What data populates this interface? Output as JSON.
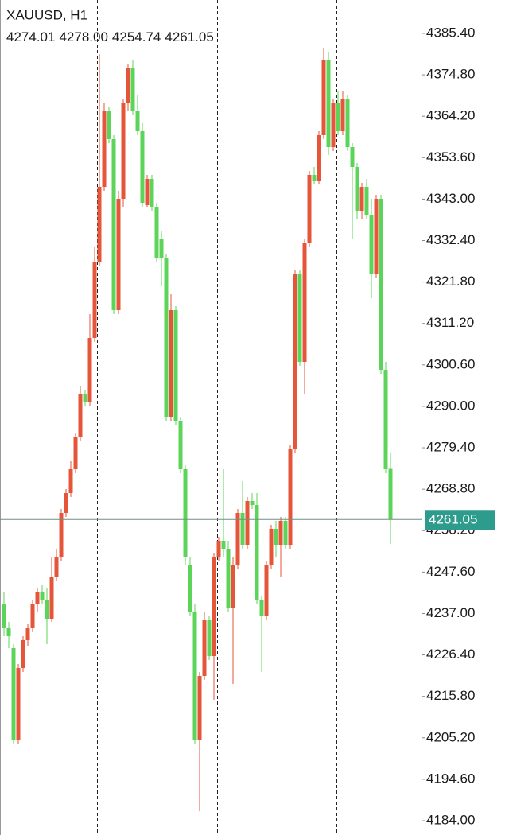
{
  "chart_data": {
    "type": "candlestick",
    "title": "XAUUSD, H1",
    "header_values": [
      "4274.01",
      "4278.00",
      "4254.74",
      "4261.05"
    ],
    "up_color": "#e4553a",
    "down_color": "#5cd45a",
    "last_price": {
      "value": 4261.05,
      "label": "4261.05"
    },
    "last_price_color": "#2e9c8d",
    "ylim": [
      4180.34,
      4393.94
    ],
    "yticks": [
      {
        "value": 4385.4,
        "label": "4385.40"
      },
      {
        "value": 4374.8,
        "label": "4374.80"
      },
      {
        "value": 4364.2,
        "label": "4364.20"
      },
      {
        "value": 4353.6,
        "label": "4353.60"
      },
      {
        "value": 4343,
        "label": "4343.00"
      },
      {
        "value": 4332.4,
        "label": "4332.40"
      },
      {
        "value": 4321.8,
        "label": "4321.80"
      },
      {
        "value": 4311.2,
        "label": "4311.20"
      },
      {
        "value": 4300.6,
        "label": "4300.60"
      },
      {
        "value": 4290,
        "label": "4290.00"
      },
      {
        "value": 4279.4,
        "label": "4279.40"
      },
      {
        "value": 4268.8,
        "label": "4268.80"
      },
      {
        "value": 4258.2,
        "label": "4258.20"
      },
      {
        "value": 4247.6,
        "label": "4247.60"
      },
      {
        "value": 4237,
        "label": "4237.00"
      },
      {
        "value": 4226.4,
        "label": "4226.40"
      },
      {
        "value": 4215.8,
        "label": "4215.80"
      },
      {
        "value": 4205.2,
        "label": "4205.20"
      },
      {
        "value": 4194.6,
        "label": "4194.60"
      },
      {
        "value": 4184,
        "label": "4184.00"
      }
    ],
    "candles": [
      [
        4239.33,
        4242.38,
        4231.2,
        4233.23
      ],
      [
        4233.23,
        4234.86,
        4228.14,
        4231.2
      ],
      [
        4228.14,
        4229.16,
        4203.73,
        4204.75
      ],
      [
        4204.75,
        4224.08,
        4203.73,
        4223.06
      ],
      [
        4223.06,
        4231.2,
        4222.04,
        4230.18
      ],
      [
        4230.18,
        4234.25,
        4228.75,
        4233.23
      ],
      [
        4233.23,
        4240.35,
        4232.21,
        4239.33
      ],
      [
        4239.33,
        4243.4,
        4237.3,
        4242.38
      ],
      [
        4242.38,
        4244.42,
        4239.33,
        4240.35
      ],
      [
        4240.35,
        4243.4,
        4229.16,
        4235.67
      ],
      [
        4235.67,
        4251.54,
        4234.86,
        4246.45
      ],
      [
        4246.45,
        4253.57,
        4245.44,
        4251.54
      ],
      [
        4251.54,
        4263.74,
        4250.52,
        4262.73
      ],
      [
        4262.73,
        4268.83,
        4261.71,
        4267.81
      ],
      [
        4267.81,
        4275.95,
        4266.8,
        4273.92
      ],
      [
        4273.92,
        4283.07,
        4272.9,
        4282.05
      ],
      [
        4282.05,
        4295.28,
        4281.04,
        4293.24
      ],
      [
        4293.24,
        4294.26,
        4290.19,
        4291.21
      ],
      [
        4291.21,
        4313.59,
        4290.19,
        4307.48
      ],
      [
        4307.48,
        4330.88,
        4306.47,
        4326.81
      ],
      [
        4326.81,
        4380.11,
        4325.79,
        4346.13
      ],
      [
        4346.13,
        4367.49,
        4345.12,
        4365.46
      ],
      [
        4365.46,
        4366.48,
        4357.32,
        4358.34
      ],
      [
        4358.34,
        4359.36,
        4313.59,
        4314.6
      ],
      [
        4314.6,
        4345.12,
        4313.59,
        4343.08
      ],
      [
        4343.08,
        4368.51,
        4341.05,
        4367.49
      ],
      [
        4367.49,
        4377.67,
        4365.46,
        4376.65
      ],
      [
        4376.65,
        4378.68,
        4364.44,
        4365.46
      ],
      [
        4365.46,
        4369.53,
        4359.36,
        4360.37
      ],
      [
        4360.37,
        4362.41,
        4341.05,
        4342.07
      ],
      [
        4341.45,
        4349.19,
        4341.05,
        4348.17
      ],
      [
        4348.17,
        4349.19,
        4340.03,
        4341.05
      ],
      [
        4341.05,
        4342.07,
        4326.81,
        4327.83
      ],
      [
        4332.91,
        4334.94,
        4320.71,
        4327.83
      ],
      [
        4327.83,
        4328.84,
        4286.12,
        4287.14
      ],
      [
        4287.14,
        4318.67,
        4286.12,
        4314.6
      ],
      [
        4314.6,
        4315.62,
        4285.1,
        4286.12
      ],
      [
        4286.12,
        4287.14,
        4272.9,
        4273.92
      ],
      [
        4273.92,
        4274.93,
        4249.5,
        4251.54
      ],
      [
        4249.5,
        4251.54,
        4236.28,
        4237.3
      ],
      [
        4237.3,
        4239.33,
        4203.73,
        4204.75
      ],
      [
        4204.75,
        4222.04,
        4186.44,
        4221.02
      ],
      [
        4221.02,
        4237.3,
        4220.01,
        4235.26
      ],
      [
        4235.26,
        4236.28,
        4225.09,
        4226.11
      ],
      [
        4226.11,
        4252.56,
        4214.92,
        4251.54
      ],
      [
        4251.54,
        4256.62,
        4250.52,
        4255.61
      ],
      [
        4255.61,
        4273.92,
        4251.54,
        4253.57
      ],
      [
        4253.57,
        4255.61,
        4237.3,
        4238.32
      ],
      [
        4238.32,
        4251.54,
        4218.99,
        4249.5
      ],
      [
        4249.5,
        4263.74,
        4248.49,
        4262.73
      ],
      [
        4262.73,
        4270.86,
        4253.57,
        4254.59
      ],
      [
        4254.59,
        4266.8,
        4253.57,
        4265.78
      ],
      [
        4265.78,
        4267.81,
        4263.74,
        4264.76
      ],
      [
        4264.76,
        4267.81,
        4239.33,
        4240.35
      ],
      [
        4240.35,
        4241.37,
        4222.04,
        4236.28
      ],
      [
        4236.28,
        4250.52,
        4235.26,
        4249.5
      ],
      [
        4249.5,
        4259.68,
        4248.49,
        4258.66
      ],
      [
        4258.66,
        4260.69,
        4251.54,
        4254.59
      ],
      [
        4254.59,
        4261.71,
        4246.45,
        4260.69
      ],
      [
        4260.69,
        4261.71,
        4253.57,
        4254.59
      ],
      [
        4254.59,
        4280.02,
        4253.57,
        4279.0
      ],
      [
        4279.0,
        4324.77,
        4277.98,
        4323.76
      ],
      [
        4323.76,
        4324.77,
        4300.36,
        4301.38
      ],
      [
        4301.38,
        4332.91,
        4293.24,
        4331.89
      ],
      [
        4331.89,
        4350.2,
        4330.88,
        4349.19
      ],
      [
        4349.19,
        4351.22,
        4346.74,
        4347.56
      ],
      [
        4347.56,
        4360.37,
        4346.74,
        4359.36
      ],
      [
        4359.36,
        4381.73,
        4358.34,
        4378.68
      ],
      [
        4378.68,
        4380.72,
        4354.27,
        4356.3
      ],
      [
        4356.3,
        4368.51,
        4355.29,
        4367.49
      ],
      [
        4367.49,
        4370.55,
        4359.36,
        4360.37
      ],
      [
        4360.37,
        4370.55,
        4359.36,
        4368.51
      ],
      [
        4368.51,
        4369.53,
        4355.29,
        4356.3
      ],
      [
        4356.3,
        4357.32,
        4332.91,
        4351.22
      ],
      [
        4351.22,
        4352.24,
        4338.0,
        4340.03
      ],
      [
        4340.03,
        4347.15,
        4338.0,
        4346.13
      ],
      [
        4346.13,
        4348.17,
        4338.0,
        4339.01
      ],
      [
        4339.01,
        4343.08,
        4317.65,
        4323.76
      ],
      [
        4323.76,
        4344.1,
        4322.74,
        4343.08
      ],
      [
        4343.08,
        4344.1,
        4298.33,
        4299.34
      ],
      [
        4299.34,
        4301.38,
        4272.9,
        4273.92
      ],
      [
        4274.01,
        4278.0,
        4254.74,
        4261.05
      ]
    ]
  }
}
